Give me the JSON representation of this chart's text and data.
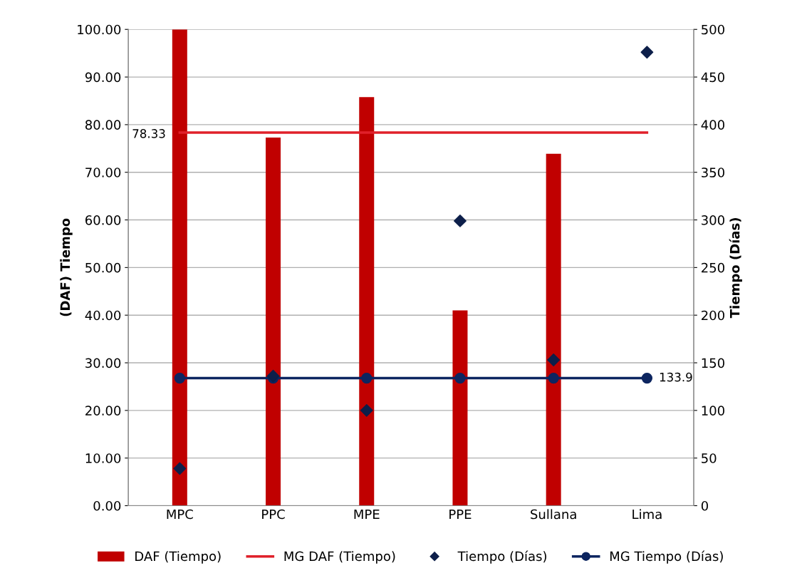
{
  "chart_data": {
    "type": "bar",
    "ylabel": "(DAF) Tiempo",
    "y2label": "Tiempo (Días)",
    "categories": [
      "MPC",
      "PPC",
      "MPE",
      "PPE",
      "Sullana",
      "Lima"
    ],
    "series": [
      {
        "name": "DAF (Tiempo)",
        "color": "#c00000",
        "values": [
          100,
          77.3,
          85.8,
          41.0,
          73.9,
          null
        ]
      },
      {
        "name": "MG DAF (Tiempo)",
        "type": "line",
        "color": "#e0202a",
        "marker": "none",
        "values": [
          78.33,
          78.33,
          78.33,
          78.33,
          78.33,
          78.33
        ],
        "value_labels": [
          "78.33",
          null,
          null,
          null,
          null,
          null
        ]
      },
      {
        "name": "Tiempo (Días)",
        "type": "scatter",
        "axis": "y2",
        "color": "#0d1f4a",
        "marker": "diamond",
        "values": [
          39,
          136,
          100,
          299,
          153,
          476
        ]
      },
      {
        "name": "MG Tiempo (Días)",
        "type": "line",
        "axis": "y2",
        "color": "#0d2560",
        "marker": "circle",
        "values": [
          133.9,
          133.9,
          133.9,
          133.9,
          133.9,
          133.9
        ],
        "value_labels": [
          null,
          null,
          null,
          null,
          null,
          "133.9"
        ]
      }
    ],
    "ylim": [
      0,
      100
    ],
    "yticks": [
      {
        "value": 0,
        "label": "0.00"
      },
      {
        "value": 10,
        "label": "10.00"
      },
      {
        "value": 20,
        "label": "20.00"
      },
      {
        "value": 30,
        "label": "30.00"
      },
      {
        "value": 40,
        "label": "40.00"
      },
      {
        "value": 50,
        "label": "50.00"
      },
      {
        "value": 60,
        "label": "60.00"
      },
      {
        "value": 70,
        "label": "70.00"
      },
      {
        "value": 80,
        "label": "80.00"
      },
      {
        "value": 90,
        "label": "90.00"
      },
      {
        "value": 100,
        "label": "100.00"
      }
    ],
    "y2lim": [
      0,
      500
    ],
    "y2ticks": [
      0,
      50,
      100,
      150,
      200,
      250,
      300,
      350,
      400,
      450,
      500
    ],
    "grid": "y",
    "legend": "bottom"
  }
}
